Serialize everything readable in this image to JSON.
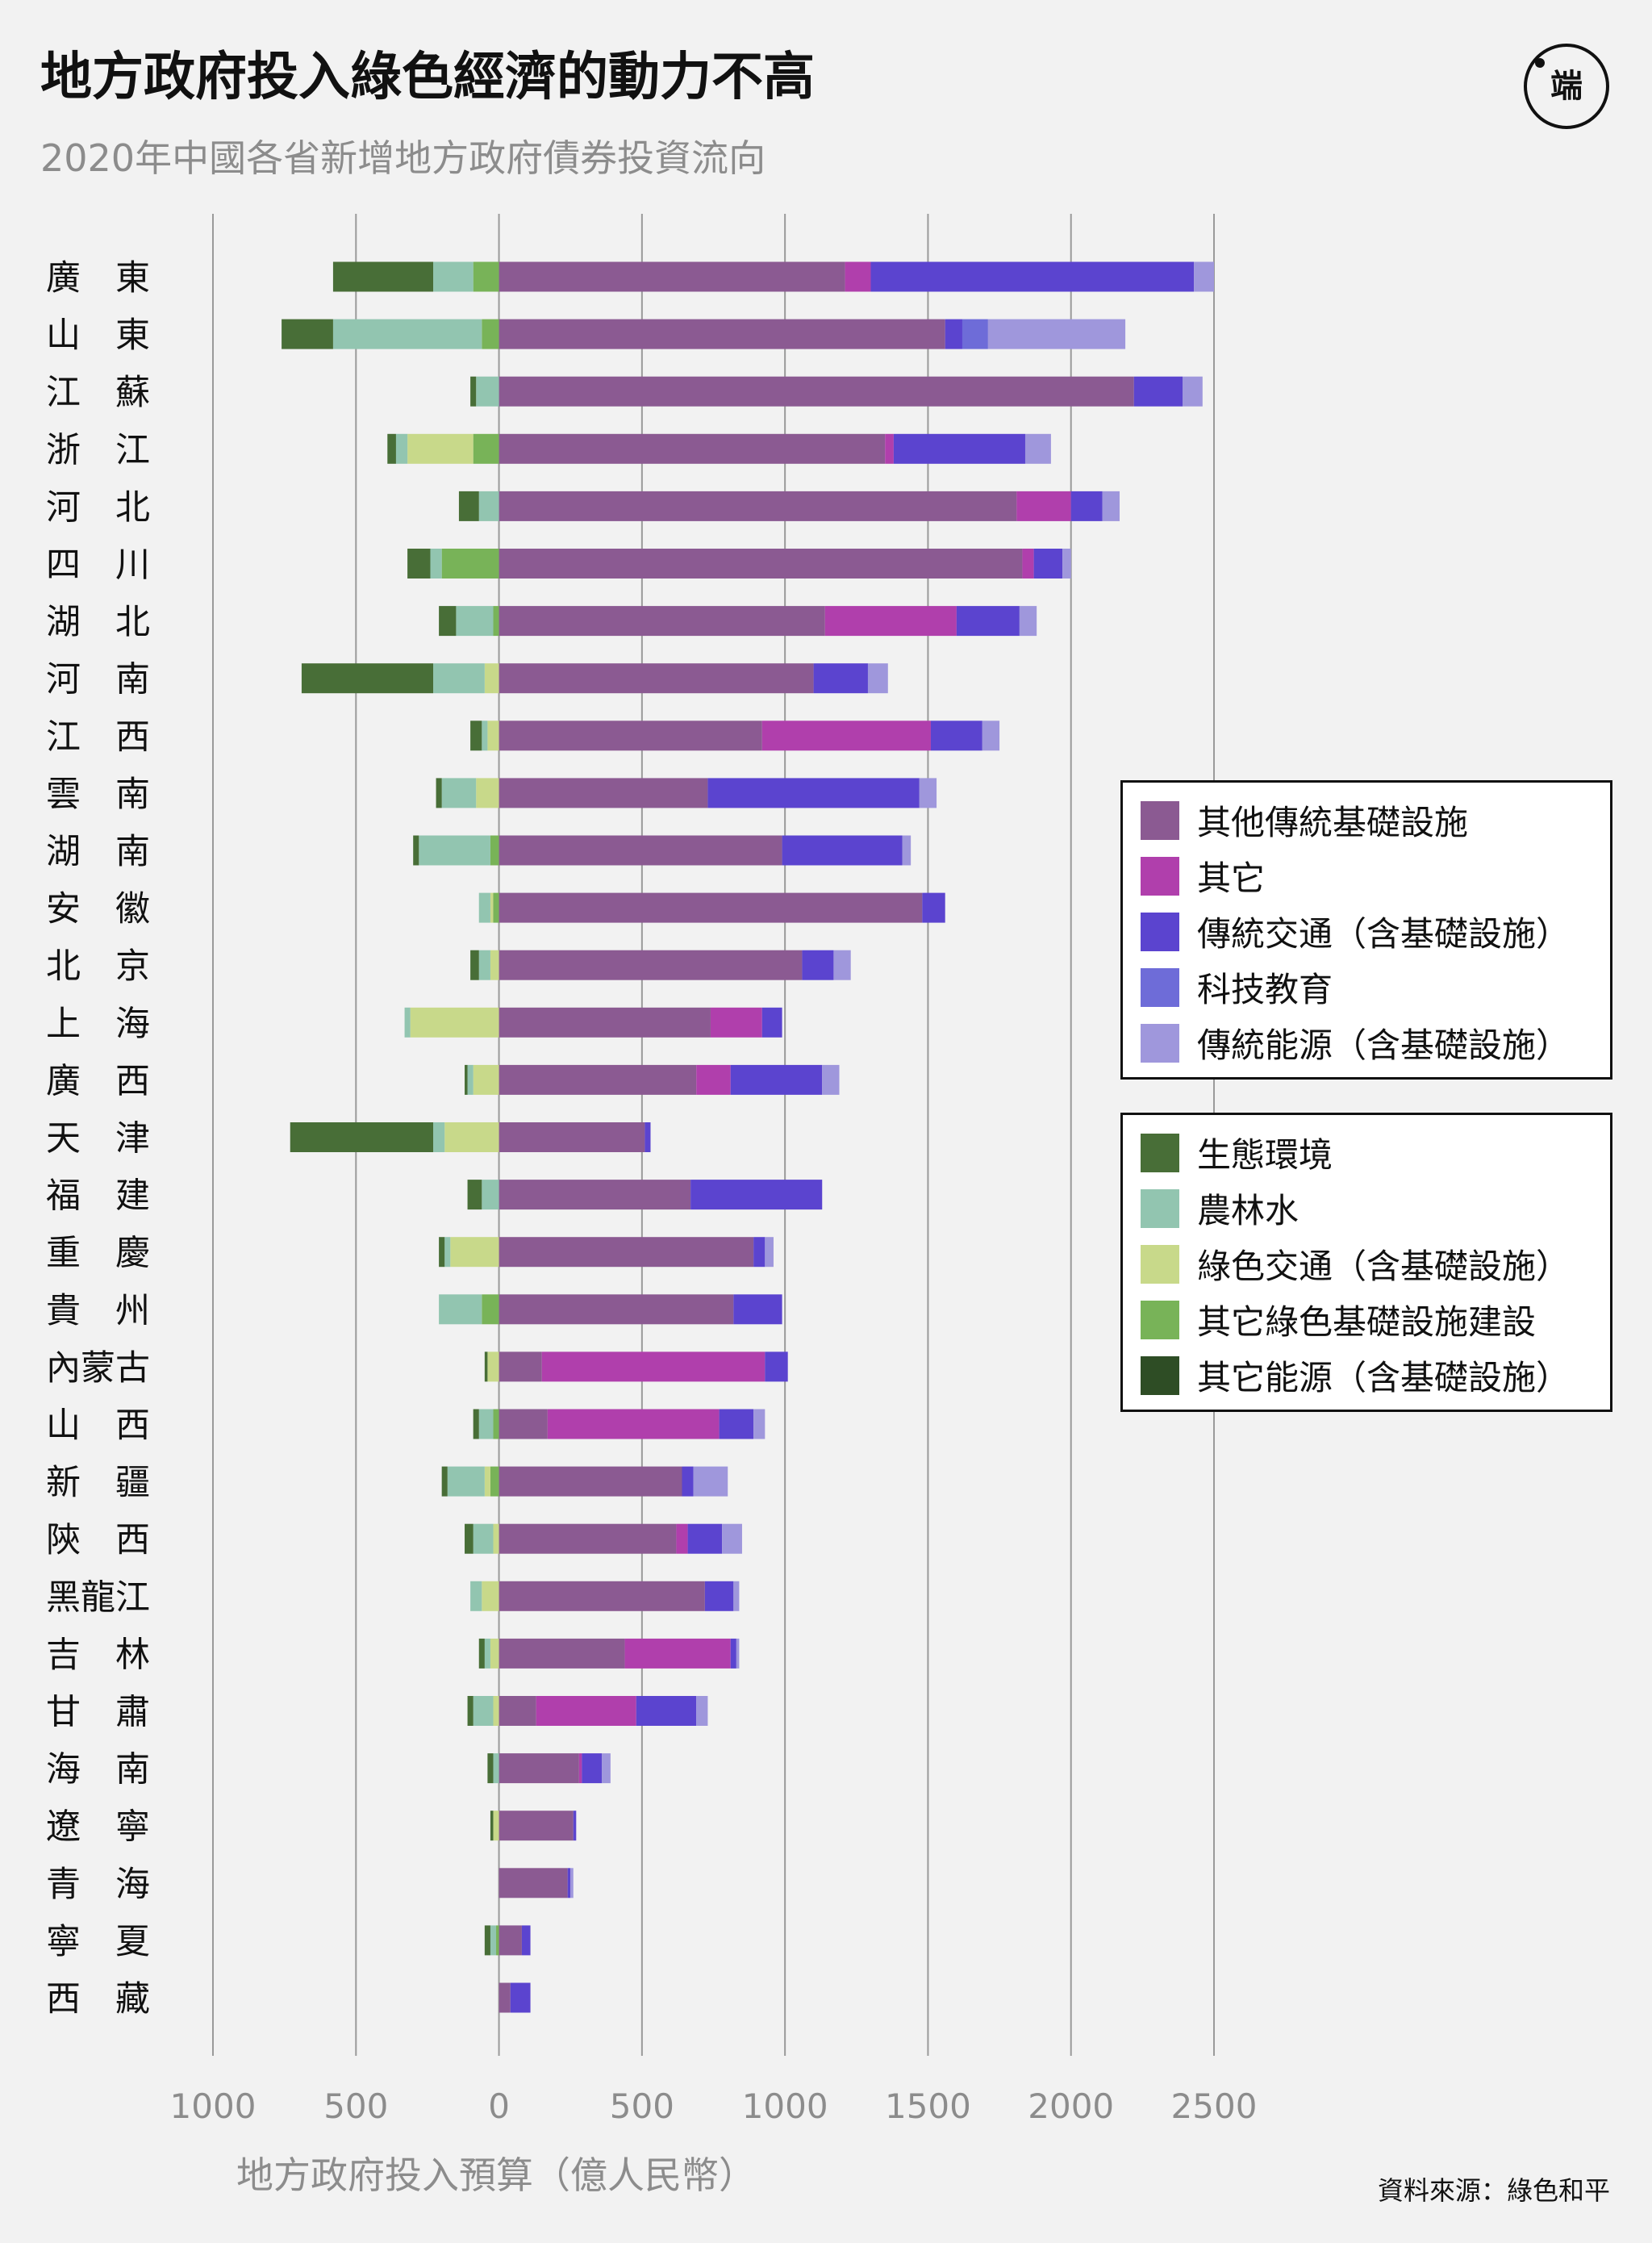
{
  "title": "地方政府投入綠色經濟的動力不高",
  "subtitle": "2020年中國各省新增地方政府債券投資流向",
  "logo_text": "端",
  "source": "資料來源：綠色和平",
  "colors": {
    "background": "#f2f2f2",
    "gridline": "#9a9a9a",
    "tick_label": "#8c8c8c"
  },
  "chart_data": {
    "type": "bar",
    "orientation": "horizontal",
    "stacked": "diverging",
    "xlabel": "地方政府投入預算（億人民幣）",
    "xlim": [
      -1000,
      2500
    ],
    "xticks": [
      -1000,
      -500,
      0,
      500,
      1000,
      1500,
      2000,
      2500
    ],
    "xtick_labels": [
      "1000",
      "500",
      "0",
      "500",
      "1000",
      "1500",
      "2000",
      "2500"
    ],
    "grid": true,
    "categories": [
      "廣　東",
      "山　東",
      "江　蘇",
      "浙　江",
      "河　北",
      "四　川",
      "湖　北",
      "河　南",
      "江　西",
      "雲　南",
      "湖　南",
      "安　徽",
      "北　京",
      "上　海",
      "廣　西",
      "天　津",
      "福　建",
      "重　慶",
      "貴　州",
      "內蒙古",
      "山　西",
      "新　疆",
      "陝　西",
      "黑龍江",
      "吉　林",
      "甘　肅",
      "海　南",
      "遼　寧",
      "青　海",
      "寧　夏",
      "西　藏"
    ],
    "legend_positive": [
      "其他傳統基礎設施",
      "其它",
      "傳統交通（含基礎設施）",
      "科技教育",
      "傳統能源（含基礎設施）"
    ],
    "legend_negative": [
      "生態環境",
      "農林水",
      "綠色交通（含基礎設施）",
      "其它綠色基礎設施建設",
      "其它能源（含基礎設施）"
    ],
    "positive_series": [
      {
        "name": "其他傳統基礎設施",
        "color": "#8b5a92",
        "values": [
          1210,
          1560,
          2220,
          1350,
          1810,
          1830,
          1140,
          1100,
          920,
          730,
          990,
          1480,
          1060,
          740,
          690,
          510,
          670,
          890,
          820,
          150,
          170,
          640,
          620,
          720,
          440,
          130,
          280,
          260,
          240,
          80,
          40
        ]
      },
      {
        "name": "其它",
        "color": "#b03fac",
        "values": [
          90,
          0,
          0,
          30,
          190,
          40,
          460,
          0,
          590,
          0,
          0,
          0,
          0,
          180,
          120,
          0,
          0,
          0,
          0,
          780,
          600,
          0,
          40,
          0,
          370,
          350,
          10,
          0,
          0,
          0,
          0
        ]
      },
      {
        "name": "傳統交通（含基礎設施）",
        "color": "#5b44cf",
        "values": [
          1130,
          60,
          170,
          460,
          110,
          100,
          220,
          190,
          180,
          740,
          420,
          80,
          110,
          70,
          320,
          20,
          460,
          40,
          170,
          80,
          120,
          40,
          120,
          100,
          20,
          210,
          70,
          10,
          10,
          30,
          70
        ]
      },
      {
        "name": "科技教育",
        "color": "#6e6cd8",
        "values": [
          0,
          90,
          0,
          0,
          0,
          0,
          0,
          0,
          0,
          0,
          0,
          0,
          0,
          0,
          0,
          0,
          0,
          0,
          0,
          0,
          0,
          0,
          0,
          0,
          0,
          0,
          0,
          0,
          0,
          0,
          0
        ]
      },
      {
        "name": "傳統能源（含基礎設施）",
        "color": "#9f97dc",
        "values": [
          70,
          480,
          70,
          90,
          60,
          30,
          60,
          70,
          60,
          60,
          30,
          0,
          60,
          0,
          60,
          0,
          0,
          30,
          0,
          0,
          40,
          120,
          70,
          20,
          10,
          40,
          30,
          0,
          10,
          0,
          0
        ]
      }
    ],
    "negative_series": [
      {
        "name": "其它綠色基礎設施建設",
        "color": "#78b358",
        "values": [
          90,
          60,
          0,
          90,
          0,
          200,
          20,
          0,
          0,
          0,
          30,
          20,
          0,
          0,
          0,
          0,
          0,
          0,
          60,
          0,
          20,
          30,
          0,
          0,
          0,
          0,
          0,
          0,
          0,
          10,
          0
        ]
      },
      {
        "name": "綠色交通（含基礎設施）",
        "color": "#c8d98a",
        "values": [
          0,
          0,
          0,
          230,
          0,
          0,
          0,
          50,
          40,
          80,
          0,
          10,
          30,
          310,
          90,
          190,
          0,
          170,
          0,
          40,
          0,
          20,
          20,
          60,
          30,
          20,
          0,
          20,
          0,
          0,
          0
        ]
      },
      {
        "name": "農林水",
        "color": "#92c5b0",
        "values": [
          140,
          520,
          80,
          40,
          70,
          40,
          130,
          180,
          20,
          120,
          250,
          40,
          40,
          20,
          20,
          40,
          60,
          20,
          150,
          0,
          50,
          130,
          70,
          40,
          20,
          70,
          20,
          0,
          0,
          20,
          0
        ]
      },
      {
        "name": "生態環境",
        "color": "#486e37",
        "values": [
          350,
          180,
          20,
          30,
          70,
          80,
          60,
          460,
          40,
          20,
          20,
          0,
          30,
          0,
          10,
          500,
          50,
          20,
          0,
          10,
          20,
          20,
          30,
          0,
          20,
          20,
          20,
          10,
          0,
          20,
          0
        ]
      },
      {
        "name": "其它能源（含基礎設施）",
        "color": "#2e4d25",
        "values": [
          0,
          0,
          0,
          0,
          0,
          0,
          0,
          0,
          0,
          0,
          0,
          0,
          0,
          0,
          0,
          0,
          0,
          0,
          0,
          0,
          0,
          0,
          0,
          0,
          0,
          0,
          0,
          0,
          0,
          0,
          0
        ]
      }
    ]
  }
}
